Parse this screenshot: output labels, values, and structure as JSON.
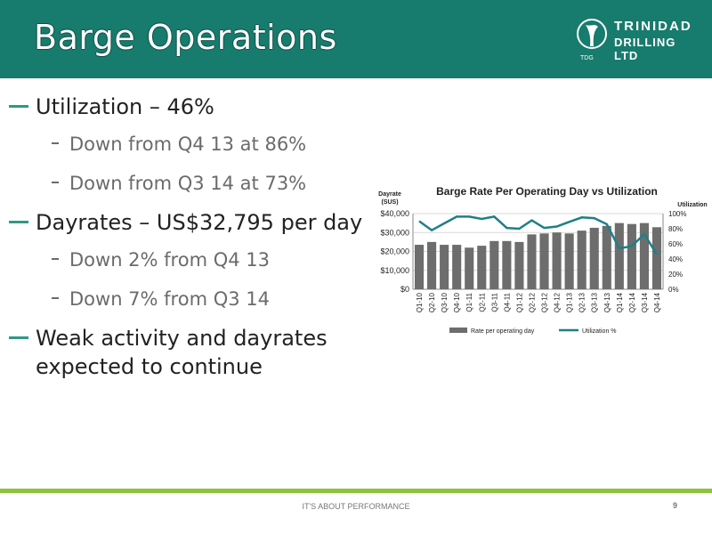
{
  "slide": {
    "title": "Barge Operations",
    "logo": {
      "line1": "TRINIDAD",
      "line2": "DRILLING LTD",
      "abbr": "TDG"
    },
    "bullets": [
      {
        "level": 1,
        "text": "Utilization – 46%"
      },
      {
        "level": 2,
        "text": "Down from Q4 13 at 86%"
      },
      {
        "level": 2,
        "text": "Down from Q3 14 at 73%"
      },
      {
        "level": 1,
        "text": "Dayrates – US$32,795 per day"
      },
      {
        "level": 2,
        "text": "Down 2% from Q4 13"
      },
      {
        "level": 2,
        "text": "Down 7% from Q3 14"
      },
      {
        "level": 1,
        "text": "Weak activity and dayrates"
      },
      {
        "level": 1,
        "text": "expected to continue",
        "continuation": true
      }
    ],
    "footer": "IT'S ABOUT PERFORMANCE",
    "page_number": "9",
    "colors": {
      "header": "#177b6d",
      "bar": "#6d6d6d",
      "line": "#1f7f86",
      "footer_line": "#8fc33f",
      "bullet_dash": "#2e9a86"
    }
  },
  "chart_data": {
    "type": "bar",
    "title": "Barge Rate Per Operating Day vs Utilization",
    "ylabel": "Dayrate\n(SUS)",
    "y2label": "Utilization",
    "categories": [
      "Q1-10",
      "Q2-10",
      "Q3-10",
      "Q4-10",
      "Q1-11",
      "Q2-11",
      "Q3-11",
      "Q4-11",
      "Q1-12",
      "Q2-12",
      "Q3-12",
      "Q4-12",
      "Q1-13",
      "Q2-13",
      "Q3-13",
      "Q4-13",
      "Q1-14",
      "Q2-14",
      "Q3-14",
      "Q4-14"
    ],
    "ylim": [
      0,
      40000
    ],
    "yticks": [
      "$0",
      "$10,000",
      "$20,000",
      "$30,000",
      "$40,000"
    ],
    "y2lim": [
      0,
      100
    ],
    "y2ticks": [
      "0%",
      "20%",
      "40%",
      "60%",
      "80%",
      "100%"
    ],
    "legend_position": "bottom",
    "series": [
      {
        "name": "Rate per operating day",
        "type": "bar",
        "values": [
          23500,
          25000,
          23500,
          23500,
          22000,
          23000,
          25500,
          25500,
          25000,
          29000,
          29500,
          30000,
          29500,
          31000,
          32500,
          33500,
          35000,
          34500,
          35000,
          32800
        ]
      },
      {
        "name": "Utilization %",
        "type": "line",
        "values": [
          90,
          78,
          87,
          96,
          96,
          93,
          96,
          81,
          80,
          91,
          81,
          83,
          89,
          95,
          94,
          86,
          54,
          57,
          73,
          46
        ]
      }
    ]
  }
}
